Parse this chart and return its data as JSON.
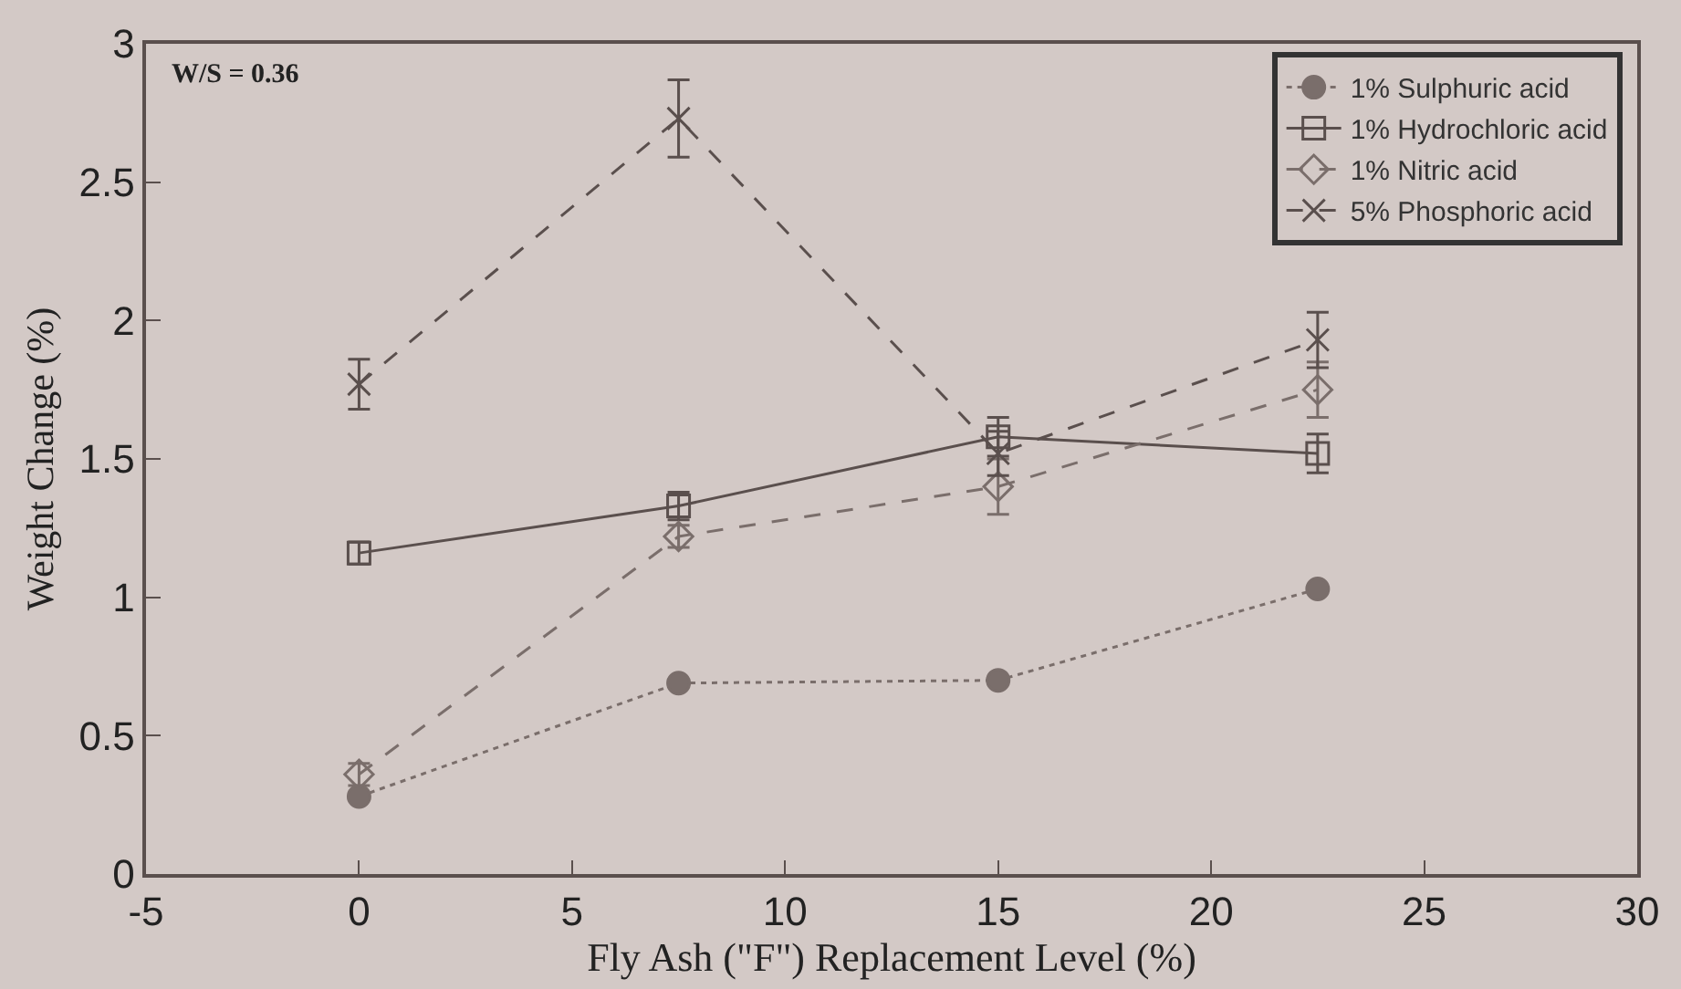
{
  "chart_data": {
    "type": "line",
    "xlabel": "Fly Ash (\"F\") Replacement Level (%)",
    "ylabel": "Weight Change (%)",
    "annotations": [
      "W/S = 0.36"
    ],
    "x": [
      0,
      7.5,
      15,
      22.5
    ],
    "xlim": [
      -5,
      30
    ],
    "xticks": [
      -5,
      0,
      5,
      10,
      15,
      20,
      25,
      30
    ],
    "ylim": [
      0,
      3
    ],
    "yticks": [
      0,
      0.5,
      1,
      1.5,
      2,
      2.5,
      3
    ],
    "grid": false,
    "legend": "top right",
    "series": [
      {
        "name": "1% Sulphuric acid",
        "color": "#7a6e6b",
        "values": [
          0.28,
          0.69,
          0.7,
          1.03
        ],
        "marker": "circle",
        "line_style": "dotted"
      },
      {
        "name": "1% Hydrochloric acid",
        "color": "#5a4f4d",
        "values": [
          1.16,
          1.33,
          1.58,
          1.52
        ],
        "marker": "square",
        "line_style": "solid",
        "errors": [
          0.04,
          0.05,
          0.07,
          0.07
        ]
      },
      {
        "name": "1% Nitric acid",
        "color": "#7a6e6b",
        "values": [
          0.36,
          1.22,
          1.4,
          1.75
        ],
        "marker": "diamond",
        "line_style": "dashed",
        "errors": [
          0.04,
          0.04,
          0.1,
          0.1
        ]
      },
      {
        "name": "5% Phosphoric acid",
        "color": "#5a4f4d",
        "values": [
          1.77,
          2.73,
          1.52,
          1.93
        ],
        "marker": "cross",
        "line_style": "dashed",
        "errors": [
          0.09,
          0.14,
          0.08,
          0.1
        ]
      }
    ]
  }
}
